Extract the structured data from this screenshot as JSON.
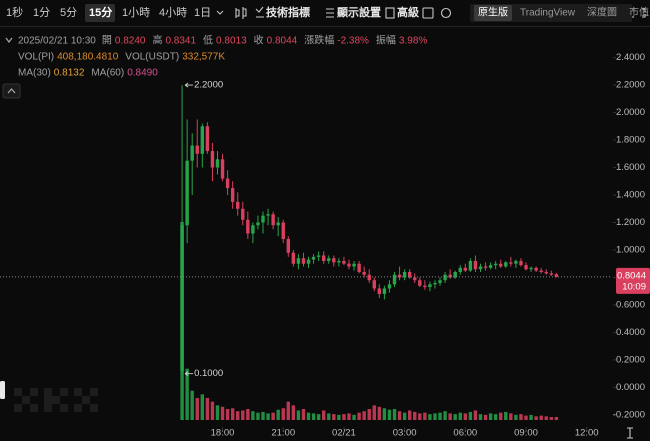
{
  "toolbar": {
    "intervals": [
      "1秒",
      "1分",
      "5分",
      "15分",
      "1小時",
      "4小時",
      "1日"
    ],
    "selected_interval": 3,
    "tools": [
      "技術指標",
      "顯示設置",
      "高級"
    ],
    "views": [
      "原生版",
      "TradingView",
      "深度圖",
      "市值"
    ],
    "selected_view": 0
  },
  "info": {
    "time": "2025/02/21 10:30",
    "fields": [
      {
        "label": "開",
        "value": "0.8240"
      },
      {
        "label": "高",
        "value": "0.8341"
      },
      {
        "label": "低",
        "value": "0.8013"
      },
      {
        "label": "收",
        "value": "0.8044"
      },
      {
        "label": "漲跌幅",
        "value": "-2.38%"
      },
      {
        "label": "振幅",
        "value": "3.98%"
      }
    ],
    "value_color": "#e0475f",
    "volume": [
      {
        "label": "VOL(PI)",
        "value": "408,180.4810",
        "color": "#df8a2c"
      },
      {
        "label": "VOL(USDT)",
        "value": "332,577K",
        "color": "#df8a2c"
      }
    ],
    "ma": [
      {
        "label": "MA(30)",
        "value": "0.8132",
        "color": "#e3a33a"
      },
      {
        "label": "MA(60)",
        "value": "0.8490",
        "color": "#d6508c"
      }
    ]
  },
  "chart_data": {
    "type": "candlestick",
    "open": [
      0.12,
      1.18,
      1.65,
      1.76,
      1.7,
      1.9,
      1.72,
      1.6,
      1.66,
      1.52,
      1.45,
      1.35,
      1.3,
      1.22,
      1.12,
      1.18,
      1.2,
      1.25,
      1.26,
      1.18,
      1.2,
      1.08,
      0.98,
      0.9,
      0.94,
      0.9,
      0.93,
      0.95,
      0.96,
      0.92,
      0.94,
      0.91,
      0.92,
      0.9,
      0.88,
      0.9,
      0.84,
      0.82,
      0.78,
      0.72,
      0.68,
      0.72,
      0.75,
      0.82,
      0.8,
      0.84,
      0.8,
      0.78,
      0.74,
      0.73,
      0.75,
      0.76,
      0.78,
      0.82,
      0.8,
      0.84,
      0.87,
      0.85,
      0.92,
      0.86,
      0.88,
      0.87,
      0.89,
      0.9,
      0.88,
      0.91,
      0.9,
      0.92,
      0.89,
      0.86,
      0.87,
      0.85,
      0.84,
      0.83,
      0.824
    ],
    "high": [
      2.2,
      1.95,
      1.85,
      1.95,
      1.92,
      1.93,
      1.78,
      1.72,
      1.7,
      1.58,
      1.5,
      1.42,
      1.35,
      1.28,
      1.2,
      1.25,
      1.28,
      1.3,
      1.28,
      1.24,
      1.22,
      1.1,
      1.0,
      0.97,
      0.98,
      0.95,
      0.97,
      0.99,
      0.99,
      0.96,
      0.96,
      0.94,
      0.95,
      0.93,
      0.92,
      0.92,
      0.88,
      0.86,
      0.8,
      0.75,
      0.74,
      0.78,
      0.84,
      0.88,
      0.86,
      0.86,
      0.83,
      0.8,
      0.78,
      0.77,
      0.78,
      0.8,
      0.84,
      0.86,
      0.85,
      0.89,
      0.9,
      0.94,
      0.96,
      0.9,
      0.91,
      0.91,
      0.92,
      0.93,
      0.92,
      0.95,
      0.93,
      0.94,
      0.91,
      0.88,
      0.88,
      0.87,
      0.86,
      0.85,
      0.8341
    ],
    "low": [
      0.1,
      1.05,
      1.4,
      1.6,
      1.6,
      1.7,
      1.5,
      1.55,
      1.5,
      1.4,
      1.3,
      1.25,
      1.18,
      1.08,
      1.05,
      1.15,
      1.12,
      1.18,
      1.15,
      1.1,
      1.05,
      0.95,
      0.88,
      0.86,
      0.88,
      0.87,
      0.9,
      0.92,
      0.9,
      0.9,
      0.88,
      0.88,
      0.89,
      0.86,
      0.85,
      0.83,
      0.8,
      0.76,
      0.7,
      0.65,
      0.64,
      0.69,
      0.73,
      0.78,
      0.78,
      0.79,
      0.76,
      0.73,
      0.71,
      0.7,
      0.72,
      0.74,
      0.76,
      0.79,
      0.79,
      0.82,
      0.84,
      0.84,
      0.84,
      0.84,
      0.85,
      0.86,
      0.86,
      0.87,
      0.87,
      0.88,
      0.87,
      0.88,
      0.85,
      0.84,
      0.84,
      0.83,
      0.82,
      0.81,
      0.8013
    ],
    "close": [
      1.18,
      1.65,
      1.76,
      1.7,
      1.9,
      1.72,
      1.6,
      1.66,
      1.52,
      1.45,
      1.35,
      1.3,
      1.22,
      1.12,
      1.18,
      1.2,
      1.25,
      1.26,
      1.18,
      1.2,
      1.08,
      0.98,
      0.9,
      0.94,
      0.9,
      0.93,
      0.95,
      0.96,
      0.92,
      0.94,
      0.91,
      0.92,
      0.9,
      0.88,
      0.9,
      0.84,
      0.82,
      0.78,
      0.72,
      0.68,
      0.72,
      0.75,
      0.82,
      0.8,
      0.84,
      0.8,
      0.78,
      0.74,
      0.73,
      0.75,
      0.76,
      0.78,
      0.82,
      0.8,
      0.84,
      0.87,
      0.85,
      0.92,
      0.86,
      0.88,
      0.87,
      0.89,
      0.9,
      0.88,
      0.91,
      0.9,
      0.92,
      0.89,
      0.86,
      0.87,
      0.85,
      0.84,
      0.83,
      0.82,
      0.8044
    ],
    "volume": [
      27,
      7,
      4,
      3,
      3.5,
      3,
      2.5,
      2,
      1.8,
      1.5,
      1.6,
      1.2,
      1.3,
      1.5,
      1.2,
      1,
      1.1,
      0.9,
      1,
      1.4,
      1.6,
      2.5,
      2,
      1.3,
      1.5,
      1,
      0.9,
      0.8,
      1.3,
      0.9,
      0.8,
      0.7,
      0.8,
      0.9,
      0.7,
      1,
      1.2,
      1.5,
      2,
      1.8,
      1.6,
      1.4,
      1.5,
      1.2,
      1,
      1.3,
      1.1,
      0.9,
      1,
      0.8,
      0.9,
      1,
      1.2,
      0.9,
      0.8,
      1,
      0.9,
      1.1,
      1.3,
      0.8,
      0.7,
      0.9,
      0.8,
      1,
      1.1,
      0.9,
      0.7,
      0.8,
      0.6,
      0.7,
      0.5,
      0.6,
      0.5,
      0.4,
      0.408
    ],
    "volume_ylim": [
      0,
      30
    ],
    "up_color": "#26a64b",
    "down_color": "#d9405f",
    "xlim": [
      -36,
      85
    ],
    "xticks": [
      {
        "value": 8,
        "label": "18:00"
      },
      {
        "value": 20,
        "label": "21:00"
      },
      {
        "value": 32,
        "label": "02/21"
      },
      {
        "value": 44,
        "label": "03:00"
      },
      {
        "value": 56,
        "label": "06:00"
      },
      {
        "value": 68,
        "label": "09:00"
      },
      {
        "value": 80,
        "label": "12:00"
      }
    ],
    "ylim": [
      -0.31,
      2.63
    ],
    "yticks": [
      {
        "value": 2.4,
        "label": "2.4000"
      },
      {
        "value": 2.2,
        "label": "2.2000"
      },
      {
        "value": 2.0,
        "label": "2.0000"
      },
      {
        "value": 1.8,
        "label": "1.8000"
      },
      {
        "value": 1.6,
        "label": "1.6000"
      },
      {
        "value": 1.4,
        "label": "1.4000"
      },
      {
        "value": 1.2,
        "label": "1.2000"
      },
      {
        "value": 1.0,
        "label": "1.0000"
      },
      {
        "value": 0.8,
        "label": "0.8000"
      },
      {
        "value": 0.6,
        "label": "0.6000"
      },
      {
        "value": 0.4,
        "label": "0.4000"
      },
      {
        "value": 0.2,
        "label": "0.2000"
      },
      {
        "value": 0,
        "label": "0.0000"
      },
      {
        "value": -0.2,
        "label": "-0.2000"
      }
    ],
    "high_label": {
      "value": 2.2,
      "label": "2.2000"
    },
    "low_label": {
      "value": 0.1,
      "label": "0.1000"
    },
    "last_price": {
      "value": 0.8044,
      "label": "0.8044"
    },
    "countdown": "10:09"
  }
}
